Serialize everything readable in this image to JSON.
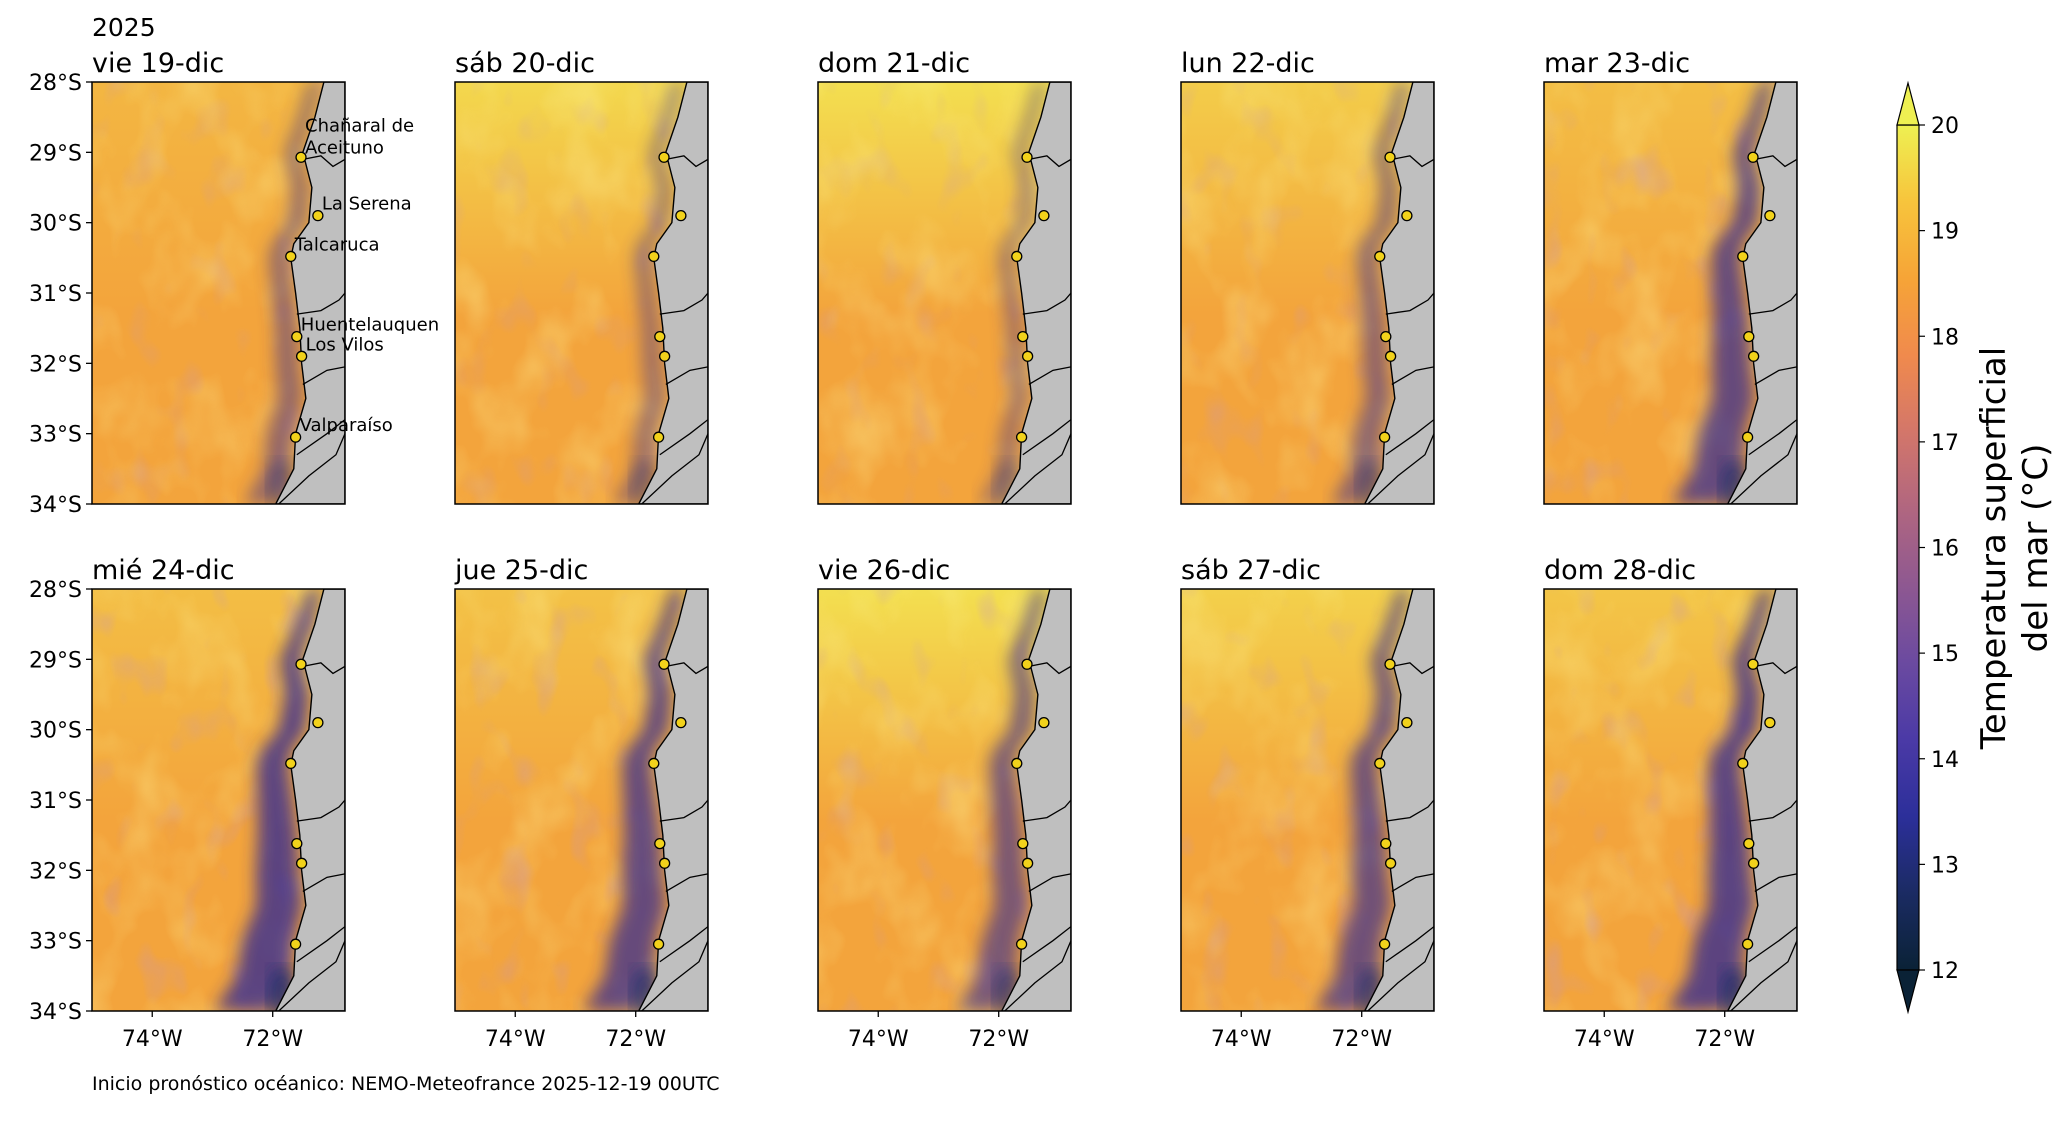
{
  "figure": {
    "year": "2025",
    "footer": "Inicio pronóstico océanico: NEMO-Meteofrance 2025-12-19 00UTC"
  },
  "panels": [
    {
      "title": "vie 19-dic",
      "cool": 0.3,
      "warmN": 0.25
    },
    {
      "title": "sáb 20-dic",
      "cool": 0.2,
      "warmN": 0.7
    },
    {
      "title": "dom 21-dic",
      "cool": 0.15,
      "warmN": 0.8
    },
    {
      "title": "lun 22-dic",
      "cool": 0.35,
      "warmN": 0.55
    },
    {
      "title": "mar 23-dic",
      "cool": 0.75,
      "warmN": 0.35
    },
    {
      "title": "mié 24-dic",
      "cool": 0.85,
      "warmN": 0.35
    },
    {
      "title": "jue 25-dic",
      "cool": 0.75,
      "warmN": 0.4
    },
    {
      "title": "vie 26-dic",
      "cool": 0.55,
      "warmN": 0.8
    },
    {
      "title": "sáb 27-dic",
      "cool": 0.65,
      "warmN": 0.6
    },
    {
      "title": "dom 28-dic",
      "cool": 0.85,
      "warmN": 0.45
    }
  ],
  "axes": {
    "lat_ticks": [
      "28°S",
      "29°S",
      "30°S",
      "31°S",
      "32°S",
      "33°S",
      "34°S"
    ],
    "lon_ticks": [
      "74°W",
      "72°W"
    ],
    "lat_range": [
      -34,
      -28
    ],
    "lon_range": [
      -75,
      -70.8
    ]
  },
  "stations": [
    {
      "name": "Chañaral de",
      "name2": "Aceituno",
      "lon": -71.53,
      "lat": -29.07
    },
    {
      "name": "La Serena",
      "name2": "",
      "lon": -71.25,
      "lat": -29.9
    },
    {
      "name": "Talcaruca",
      "name2": "",
      "lon": -71.7,
      "lat": -30.48
    },
    {
      "name": "Huentelauquen",
      "name2": "",
      "lon": -71.6,
      "lat": -31.62
    },
    {
      "name": "Los Vilos",
      "name2": "",
      "lon": -71.52,
      "lat": -31.9
    },
    {
      "name": "Valparaíso",
      "name2": "",
      "lon": -71.62,
      "lat": -33.05
    }
  ],
  "colorbar": {
    "label_line1": "Temperatura superficial",
    "label_line2": "del mar (°C)",
    "ticks": [
      "12",
      "13",
      "14",
      "15",
      "16",
      "17",
      "18",
      "19",
      "20"
    ],
    "min": 12,
    "max": 20,
    "stops": [
      "#0a2236",
      "#1b2b63",
      "#2c2f9a",
      "#4b3aa6",
      "#6b4aa0",
      "#8e5891",
      "#b06680",
      "#d3766a",
      "#f08a4d",
      "#f6a437",
      "#f7c43c",
      "#eef052"
    ]
  },
  "colors": {
    "land": "#bfbfbf",
    "station_fill": "#f2d21b"
  }
}
